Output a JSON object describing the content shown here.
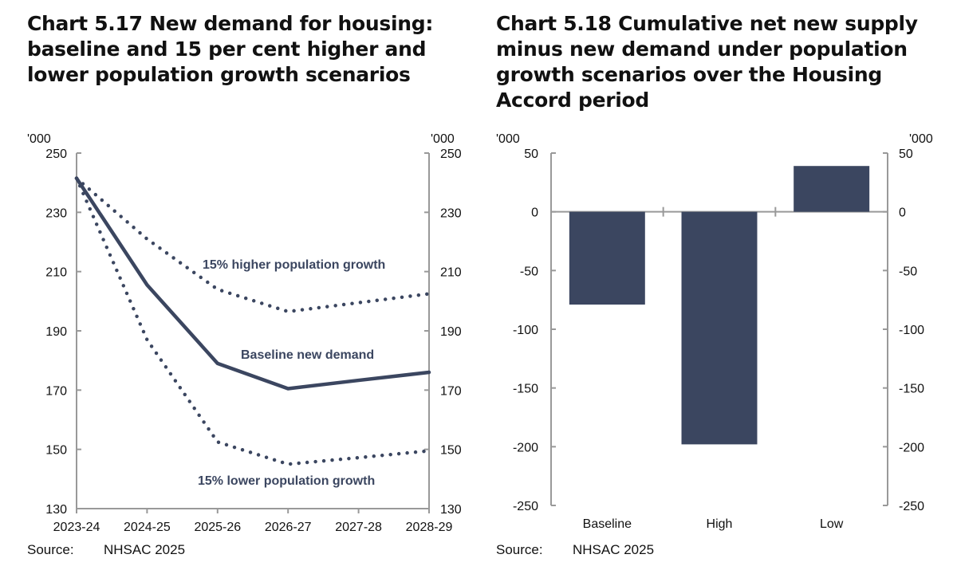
{
  "colors": {
    "series": "#3b4660",
    "axis": "#999999",
    "text": "#111111"
  },
  "chart_data": [
    {
      "type": "line",
      "title": "Chart 5.17 New demand for housing: baseline and 15 per cent higher and lower population growth scenarios",
      "unit_label_left": "'000",
      "unit_label_right": "'000",
      "xlabel": "",
      "ylabel": "'000",
      "ylim": [
        130,
        250
      ],
      "yticks": [
        250,
        230,
        210,
        190,
        170,
        150,
        130
      ],
      "ytick_labels": [
        "250",
        "230",
        "210",
        "190",
        "170",
        "150",
        "130"
      ],
      "categories": [
        "2023-24",
        "2024-25",
        "2025-26",
        "2026-27",
        "2027-28",
        "2028-29"
      ],
      "series": [
        {
          "name": "15% higher population growth",
          "style": "dotted",
          "values": [
            241.5,
            221,
            204,
            196.5,
            199.5,
            202.5
          ]
        },
        {
          "name": "Baseline new demand",
          "style": "solid",
          "values": [
            241.5,
            205.5,
            179,
            170.5,
            173.3,
            176
          ]
        },
        {
          "name": "15% lower population growth",
          "style": "dotted",
          "values": [
            241.5,
            187,
            152.5,
            145,
            147.2,
            149.5
          ]
        }
      ],
      "annotations": [
        "15% higher population growth",
        "Baseline new demand",
        "15% lower population growth"
      ],
      "grid": false,
      "source_label": "Source:",
      "source_text": "NHSAC 2025"
    },
    {
      "type": "bar",
      "title": "Chart 5.18 Cumulative net new supply minus new demand under population growth scenarios over the Housing Accord period",
      "unit_label_left": "'000",
      "unit_label_right": "'000",
      "xlabel": "",
      "ylabel": "'000",
      "ylim": [
        -250,
        50
      ],
      "yticks": [
        50,
        0,
        -50,
        -100,
        -150,
        -200,
        -250
      ],
      "ytick_labels": [
        "50",
        "0",
        "-50",
        "-100",
        "-150",
        "-200",
        "-250"
      ],
      "categories": [
        "Baseline",
        "High",
        "Low"
      ],
      "values": [
        -79,
        -198,
        39
      ],
      "grid": false,
      "source_label": "Source:",
      "source_text": "NHSAC 2025"
    }
  ]
}
